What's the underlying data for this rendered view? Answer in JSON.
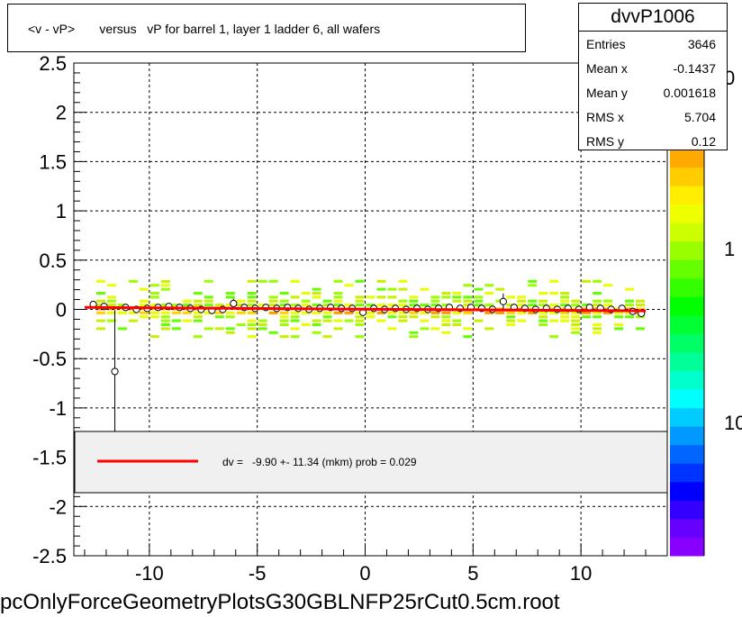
{
  "title": "<v - vP>       versus   vP for barrel 1, layer 1 ladder 6, all wafers",
  "stats": {
    "name": "dvvP1006",
    "rows": [
      {
        "label": "Entries",
        "value": "3646"
      },
      {
        "label": "Mean x",
        "value": "-0.1437"
      },
      {
        "label": "Mean y",
        "value": "0.001618"
      },
      {
        "label": "RMS x",
        "value": "5.704"
      },
      {
        "label": "RMS y",
        "value": "0.12"
      }
    ]
  },
  "legend": {
    "text": "dv =   -9.90 +- 11.34 (mkm) prob = 0.029",
    "line_color": "#ff0000"
  },
  "footer": "pcOnlyForceGeometryPlotsG30GBLNFP25rCut0.5cm.root",
  "colorbar": {
    "labels": [
      "0",
      "1",
      "10"
    ]
  },
  "chart_data": {
    "type": "scatter",
    "title": "<v - vP>       versus   vP for barrel 1, layer 1 ladder 6, all wafers",
    "xlim": [
      -13.5,
      14
    ],
    "ylim": [
      -2.5,
      2.5
    ],
    "x_ticks": [
      -10,
      -5,
      0,
      5,
      10
    ],
    "x_tick_labels": [
      "-10",
      "-5",
      "0",
      "5",
      "10"
    ],
    "y_ticks": [
      -2.5,
      -2,
      -1.5,
      -1,
      -0.5,
      0,
      0.5,
      1,
      1.5,
      2,
      2.5
    ],
    "y_tick_labels": [
      "-2.5",
      "-2",
      "-1.5",
      "-1",
      "-0.5",
      "0",
      "0.5",
      "1",
      "1.5",
      "2",
      "2.5"
    ],
    "grid": true,
    "profile_points": {
      "x": [
        -12.6,
        -12.1,
        -11.6,
        -11.1,
        -10.6,
        -10.1,
        -9.6,
        -9.1,
        -8.6,
        -8.1,
        -7.6,
        -7.1,
        -6.6,
        -6.1,
        -5.6,
        -5.1,
        -4.6,
        -4.1,
        -3.6,
        -3.1,
        -2.6,
        -2.1,
        -1.6,
        -1.1,
        -0.6,
        -0.1,
        0.4,
        0.9,
        1.4,
        1.9,
        2.4,
        2.9,
        3.4,
        3.9,
        4.4,
        4.9,
        5.4,
        5.9,
        6.4,
        6.9,
        7.4,
        7.9,
        8.4,
        8.9,
        9.4,
        9.9,
        10.4,
        10.9,
        11.4,
        11.9,
        12.4,
        12.8
      ],
      "y": [
        0.05,
        0.03,
        -0.63,
        0.02,
        0.0,
        0.01,
        0.02,
        0.03,
        0.02,
        0.01,
        0.0,
        -0.01,
        0.0,
        0.06,
        0.02,
        0.01,
        0.02,
        0.01,
        0.02,
        0.01,
        0.0,
        0.01,
        0.02,
        0.01,
        0.01,
        -0.03,
        0.01,
        0.0,
        0.01,
        0.0,
        0.01,
        0.0,
        0.01,
        0.02,
        0.01,
        0.02,
        0.01,
        0.0,
        0.08,
        0.02,
        0.01,
        0.0,
        0.01,
        0.0,
        0.01,
        0.0,
        0.02,
        0.01,
        0.0,
        0.01,
        -0.02,
        -0.04
      ],
      "err": [
        0.02,
        0.02,
        0.62,
        0.02,
        0.02,
        0.02,
        0.02,
        0.02,
        0.02,
        0.02,
        0.02,
        0.02,
        0.02,
        0.05,
        0.02,
        0.02,
        0.02,
        0.02,
        0.02,
        0.02,
        0.02,
        0.02,
        0.02,
        0.02,
        0.02,
        0.03,
        0.02,
        0.02,
        0.02,
        0.02,
        0.02,
        0.02,
        0.02,
        0.02,
        0.02,
        0.02,
        0.02,
        0.02,
        0.08,
        0.02,
        0.02,
        0.02,
        0.02,
        0.02,
        0.02,
        0.02,
        0.02,
        0.02,
        0.02,
        0.02,
        0.03,
        0.03
      ]
    },
    "fit_line": {
      "x": [
        -13,
        13
      ],
      "y": [
        0.02,
        -0.015
      ],
      "color": "#ff0000"
    }
  }
}
